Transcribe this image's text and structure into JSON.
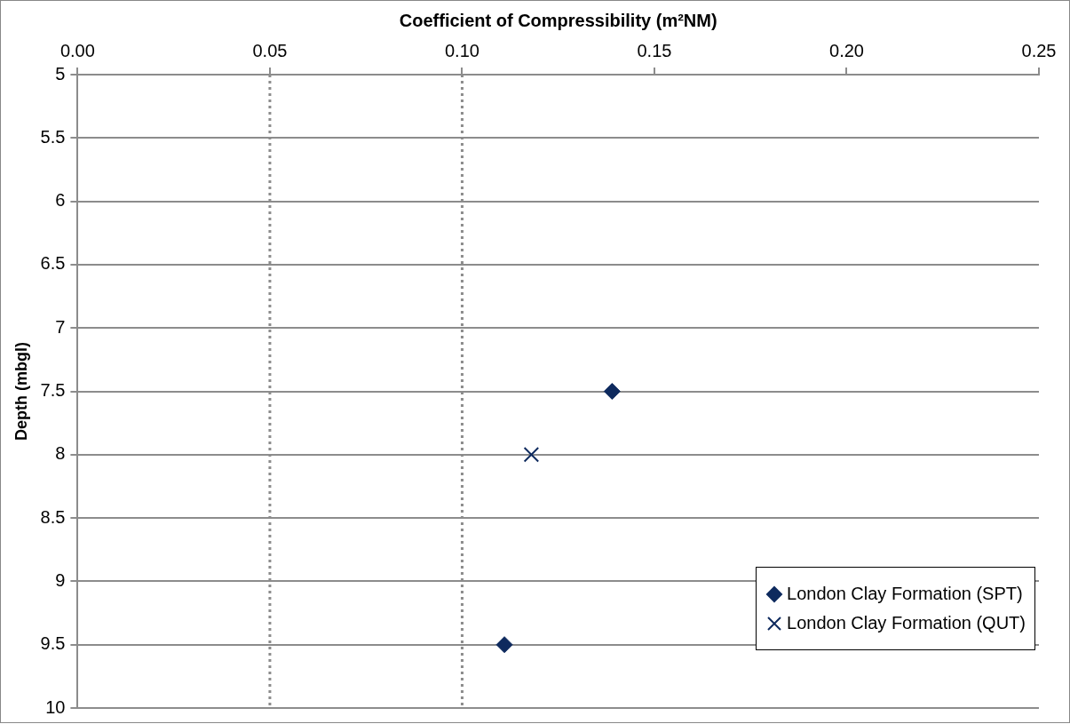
{
  "chart_data": {
    "type": "scatter",
    "xlabel": "Coefficient of Compressibility (m²NM)",
    "ylabel": "Depth (mbgl)",
    "xlim": [
      0,
      0.25
    ],
    "xticks": [
      {
        "value": 0,
        "label": "0.00"
      },
      {
        "value": 0.05,
        "label": "0.05"
      },
      {
        "value": 0.1,
        "label": "0.10"
      },
      {
        "value": 0.15,
        "label": "0.15"
      },
      {
        "value": 0.2,
        "label": "0.20"
      },
      {
        "value": 0.25,
        "label": "0.25"
      }
    ],
    "ylim": [
      10,
      5
    ],
    "yticks": [
      5,
      5.5,
      6,
      6.5,
      7,
      7.5,
      8,
      8.5,
      9,
      9.5,
      10
    ],
    "grid": "y",
    "legend": "bottom right",
    "series": [
      {
        "name": "London Clay Formation (SPT)",
        "color": "#0e2a5e",
        "marker": "diamond",
        "x": [
          0.139,
          0.111
        ],
        "values": [
          7.5,
          9.5
        ]
      },
      {
        "name": "London Clay Formation (QUT)",
        "color": "#0e2a5e",
        "marker": "cross",
        "x": [
          0.118
        ],
        "values": [
          8
        ]
      }
    ],
    "ref_lines": [
      {
        "axis": "x",
        "value": 0.05,
        "color": "#8c8c8c",
        "line_style": "dotted"
      },
      {
        "axis": "x",
        "value": 0.1,
        "color": "#8c8c8c",
        "line_style": "dotted"
      }
    ]
  }
}
